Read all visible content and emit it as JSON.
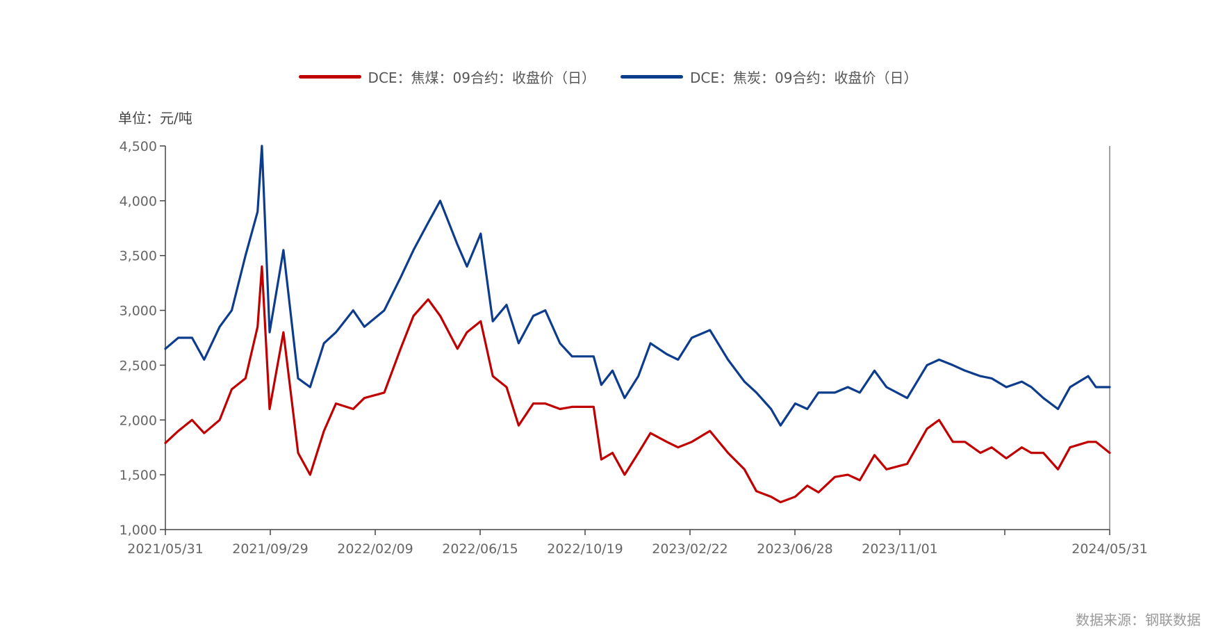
{
  "chart_data": {
    "type": "line",
    "title": "",
    "unit_label": "单位：元/吨",
    "source": "数据来源：钢联数据",
    "ylim": [
      1000,
      4500
    ],
    "yticks": [
      1000,
      1500,
      2000,
      2500,
      3000,
      3500,
      4000,
      4500
    ],
    "ytick_labels": [
      "1,000",
      "1,500",
      "2,000",
      "2,500",
      "3,000",
      "3,500",
      "4,000",
      "4,500"
    ],
    "xticks": [
      "2021/05/31",
      "2021/09/29",
      "2022/02/09",
      "2022/06/15",
      "2022/10/19",
      "2023/02/22",
      "2023/06/28",
      "2023/11/01",
      "",
      "2024/05/31"
    ],
    "x": [
      "2021/05/31",
      "2021/06/15",
      "2021/07/01",
      "2021/07/15",
      "2021/08/02",
      "2021/08/16",
      "2021/09/01",
      "2021/09/15",
      "2021/09/20",
      "2021/09/29",
      "2021/10/15",
      "2021/11/01",
      "2021/11/15",
      "2021/12/01",
      "2021/12/15",
      "2022/01/04",
      "2022/01/17",
      "2022/02/09",
      "2022/02/28",
      "2022/03/15",
      "2022/04/01",
      "2022/04/15",
      "2022/05/05",
      "2022/05/16",
      "2022/06/01",
      "2022/06/15",
      "2022/07/01",
      "2022/07/15",
      "2022/08/01",
      "2022/08/15",
      "2022/09/01",
      "2022/09/15",
      "2022/10/10",
      "2022/10/19",
      "2022/11/01",
      "2022/11/15",
      "2022/12/01",
      "2022/12/15",
      "2023/01/03",
      "2023/01/16",
      "2023/02/01",
      "2023/02/22",
      "2023/03/15",
      "2023/04/03",
      "2023/04/17",
      "2023/05/04",
      "2023/05/15",
      "2023/06/01",
      "2023/06/15",
      "2023/06/28",
      "2023/07/17",
      "2023/08/01",
      "2023/08/15",
      "2023/09/01",
      "2023/09/15",
      "2023/10/09",
      "2023/11/01",
      "2023/11/15",
      "2023/12/01",
      "2023/12/15",
      "2024/01/02",
      "2024/01/15",
      "2024/02/01",
      "2024/02/19",
      "2024/03/01",
      "2024/03/15",
      "2024/04/01",
      "2024/04/15",
      "2024/05/06",
      "2024/05/15",
      "2024/05/31"
    ],
    "series": [
      {
        "name": "DCE：焦煤：09合约：收盘价（日）",
        "color": "#C00000",
        "values": [
          1790,
          1900,
          2000,
          1880,
          2000,
          2280,
          2380,
          2850,
          3400,
          2100,
          2800,
          1700,
          1500,
          1900,
          2150,
          2100,
          2200,
          2250,
          2650,
          2950,
          3100,
          2950,
          2650,
          2800,
          2900,
          2400,
          2300,
          1950,
          2150,
          2150,
          2100,
          2120,
          2120,
          1640,
          1700,
          1500,
          1700,
          1880,
          1800,
          1750,
          1800,
          1900,
          1700,
          1550,
          1350,
          1300,
          1250,
          1300,
          1400,
          1340,
          1480,
          1500,
          1450,
          1680,
          1550,
          1600,
          1920,
          2000,
          1800,
          1800,
          1700,
          1750,
          1650,
          1750,
          1700,
          1700,
          1550,
          1750,
          1800,
          1800,
          1700
        ]
      },
      {
        "name": "DCE：焦炭：09合约：收盘价（日）",
        "color": "#0D3C8C",
        "values": [
          2650,
          2750,
          2750,
          2550,
          2850,
          3000,
          3500,
          3900,
          4500,
          2800,
          3550,
          2380,
          2300,
          2700,
          2800,
          3000,
          2850,
          3000,
          3300,
          3550,
          3800,
          4000,
          3600,
          3400,
          3700,
          2900,
          3050,
          2700,
          2950,
          3000,
          2700,
          2580,
          2580,
          2320,
          2450,
          2200,
          2400,
          2700,
          2600,
          2550,
          2750,
          2820,
          2550,
          2350,
          2250,
          2100,
          1950,
          2150,
          2100,
          2250,
          2250,
          2300,
          2250,
          2450,
          2300,
          2200,
          2500,
          2550,
          2500,
          2450,
          2400,
          2380,
          2300,
          2350,
          2300,
          2200,
          2100,
          2300,
          2400,
          2300,
          2300
        ]
      }
    ],
    "grid": false,
    "legend_position": "top-center"
  }
}
